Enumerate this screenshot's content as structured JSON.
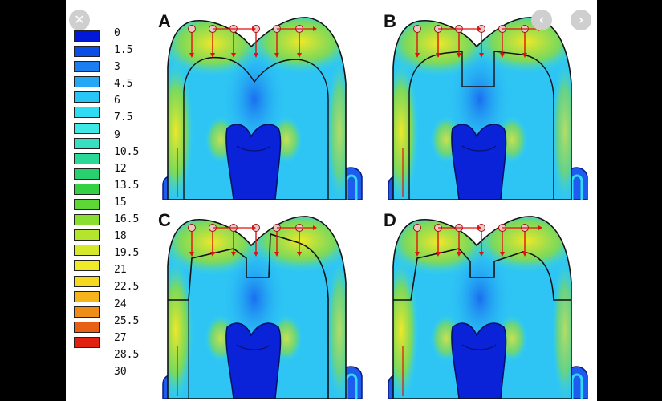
{
  "viewer": {
    "close_glyph": "✕",
    "prev_glyph": "‹",
    "next_glyph": "›",
    "close_icon": "close-icon",
    "prev_icon": "chevron-left-icon",
    "next_icon": "chevron-right-icon"
  },
  "legend": {
    "labels": [
      "0",
      "1.5",
      "3",
      "4.5",
      "6",
      "7.5",
      "9",
      "10.5",
      "12",
      "13.5",
      "15",
      "16.5",
      "18",
      "19.5",
      "21",
      "22.5",
      "24",
      "25.5",
      "27",
      "28.5",
      "30"
    ],
    "colors": [
      "#0018d8",
      "#0a50e8",
      "#1a7ef0",
      "#22a8f4",
      "#28c6f6",
      "#30dcf4",
      "#3ee8e4",
      "#38e0c0",
      "#2cd898",
      "#28d070",
      "#34d044",
      "#5ed636",
      "#8ade30",
      "#b4e42c",
      "#d6e82a",
      "#eeea26",
      "#f6d820",
      "#f6b41c",
      "#f08c18",
      "#e86014",
      "#e02010"
    ]
  },
  "panels": [
    {
      "id": "a",
      "label": "A",
      "variant": "crown"
    },
    {
      "id": "b",
      "label": "B",
      "variant": "inlay"
    },
    {
      "id": "c",
      "label": "C",
      "variant": "onlay"
    },
    {
      "id": "d",
      "label": "D",
      "variant": "overlay"
    }
  ]
}
